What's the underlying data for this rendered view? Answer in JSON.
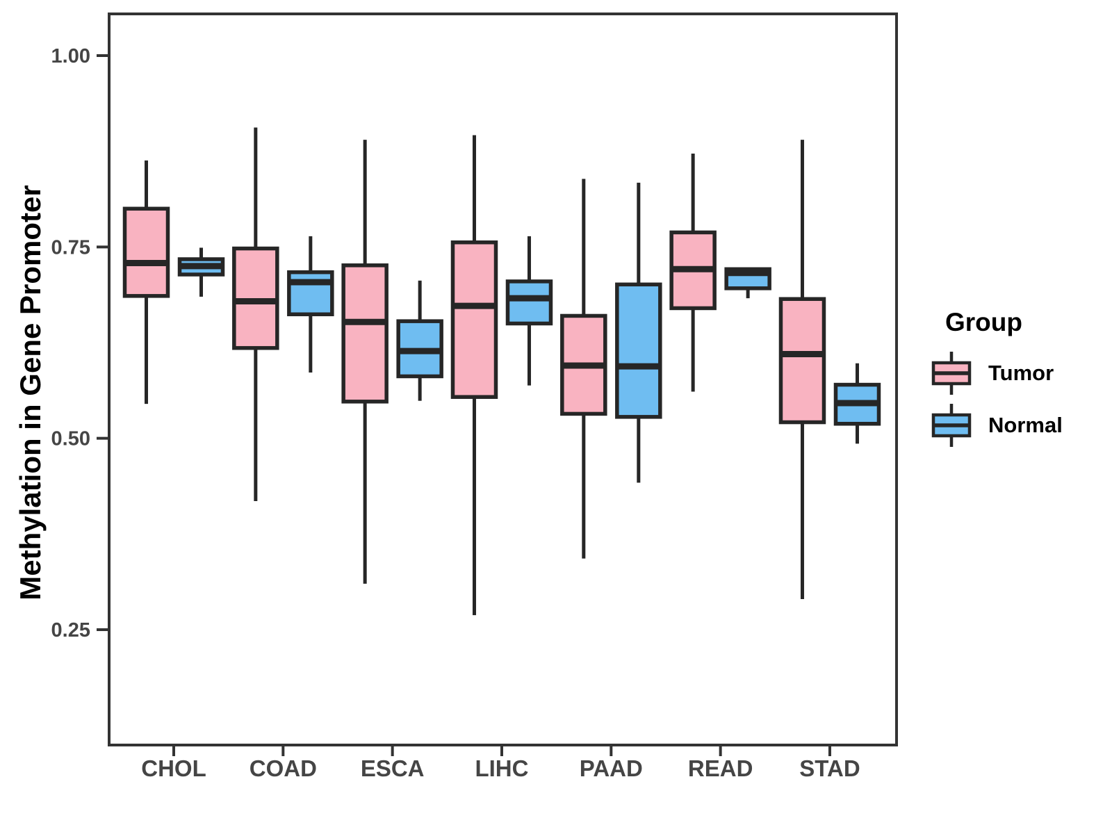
{
  "figure": {
    "background": "#ffffff",
    "panel_border_color": "#333333",
    "box_outline_color": "#262626",
    "tick_color": "#333333",
    "axis_text_color": "#454545"
  },
  "chart_data": {
    "type": "boxplot",
    "title": "",
    "xlabel": "",
    "ylabel": "Methylation in Gene Promoter",
    "categories": [
      "CHOL",
      "COAD",
      "ESCA",
      "LIHC",
      "PAAD",
      "READ",
      "STAD"
    ],
    "groups": [
      "Tumor",
      "Normal"
    ],
    "y_ticks": [
      0.25,
      0.5,
      0.75,
      1.0
    ],
    "y_tick_labels": [
      "0.25",
      "0.50",
      "0.75",
      "1.00"
    ],
    "ylim": [
      0.1,
      1.05
    ],
    "grid": false,
    "legend_position": "right",
    "legend": {
      "title": "Group",
      "entries": [
        {
          "label": "Tumor",
          "color": "#F9B3C1"
        },
        {
          "label": "Normal",
          "color": "#6FBDF1"
        }
      ]
    },
    "series": [
      {
        "name": "Tumor",
        "color": "#F9B3C1",
        "boxes": [
          {
            "category": "CHOL",
            "low": 0.545,
            "q1": 0.686,
            "median": 0.729,
            "q3": 0.8,
            "high": 0.863
          },
          {
            "category": "COAD",
            "low": 0.418,
            "q1": 0.618,
            "median": 0.679,
            "q3": 0.748,
            "high": 0.906
          },
          {
            "category": "ESCA",
            "low": 0.31,
            "q1": 0.548,
            "median": 0.652,
            "q3": 0.726,
            "high": 0.89
          },
          {
            "category": "LIHC",
            "low": 0.269,
            "q1": 0.554,
            "median": 0.673,
            "q3": 0.756,
            "high": 0.896
          },
          {
            "category": "PAAD",
            "low": 0.343,
            "q1": 0.532,
            "median": 0.595,
            "q3": 0.66,
            "high": 0.839
          },
          {
            "category": "READ",
            "low": 0.561,
            "q1": 0.67,
            "median": 0.721,
            "q3": 0.769,
            "high": 0.872
          },
          {
            "category": "STAD",
            "low": 0.29,
            "q1": 0.521,
            "median": 0.61,
            "q3": 0.682,
            "high": 0.89
          }
        ]
      },
      {
        "name": "Normal",
        "color": "#6FBDF1",
        "boxes": [
          {
            "category": "CHOL",
            "low": 0.685,
            "q1": 0.714,
            "median": 0.725,
            "q3": 0.734,
            "high": 0.749
          },
          {
            "category": "COAD",
            "low": 0.586,
            "q1": 0.662,
            "median": 0.704,
            "q3": 0.717,
            "high": 0.764
          },
          {
            "category": "ESCA",
            "low": 0.549,
            "q1": 0.581,
            "median": 0.614,
            "q3": 0.653,
            "high": 0.706
          },
          {
            "category": "LIHC",
            "low": 0.569,
            "q1": 0.65,
            "median": 0.683,
            "q3": 0.705,
            "high": 0.764
          },
          {
            "category": "PAAD",
            "low": 0.442,
            "q1": 0.528,
            "median": 0.594,
            "q3": 0.701,
            "high": 0.834
          },
          {
            "category": "READ",
            "low": 0.683,
            "q1": 0.696,
            "median": 0.716,
            "q3": 0.721,
            "high": 0.722
          },
          {
            "category": "STAD",
            "low": 0.493,
            "q1": 0.519,
            "median": 0.546,
            "q3": 0.57,
            "high": 0.598
          }
        ]
      }
    ]
  }
}
